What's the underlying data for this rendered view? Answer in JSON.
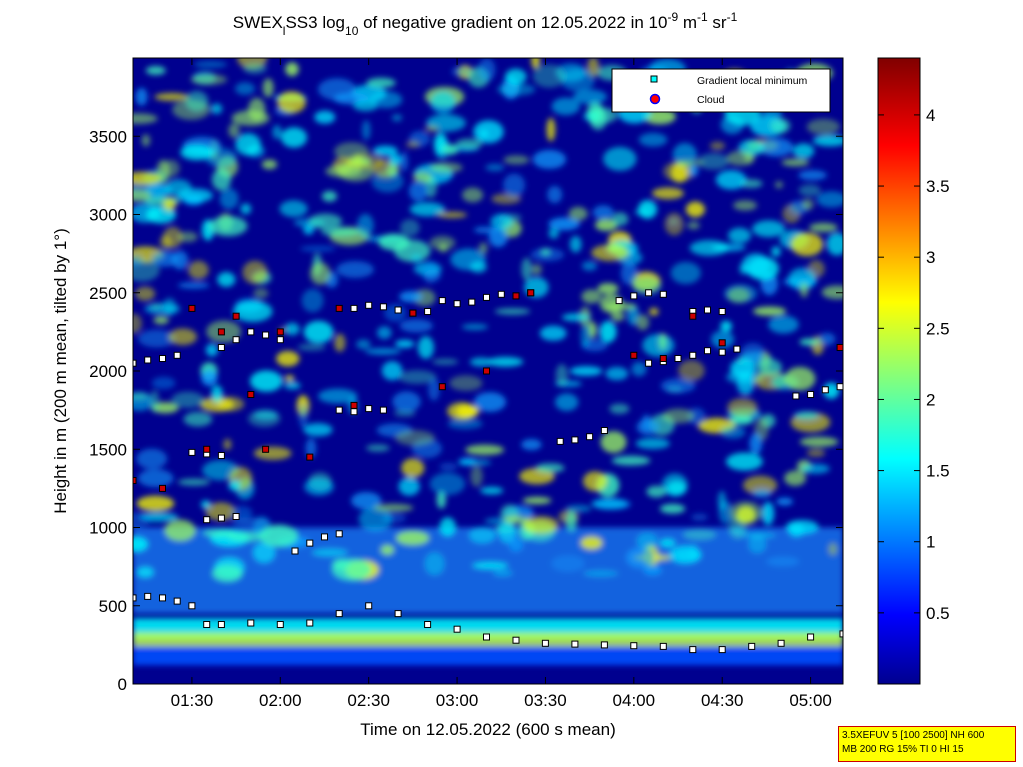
{
  "title": {
    "prefix": "SWEX",
    "subscript_1": "l",
    "middle": "SS3 log",
    "subscript_2": "10",
    "rest": " of negative gradient on 12.05.2022 in 10",
    "exp_1": "-9",
    "unit_1": " m",
    "exp_2": "-1",
    "unit_2": " sr",
    "exp_3": "-1"
  },
  "info_box": {
    "line1": "3.5XEFUV 5 [100 2500] NH 600",
    "line2": "MB 200 RG 15% TI 0 HI 15"
  },
  "colors": {
    "cloud_marker": "#cc0000",
    "gradient_marker": "#ffffff",
    "colormap": [
      "#00008f",
      "#0000ff",
      "#00ffff",
      "#ffff00",
      "#ff0000",
      "#800000"
    ]
  },
  "chart_data": {
    "type": "heatmap",
    "colormap": "jet",
    "xlabel": "Time on 12.05.2022 (600 s mean)",
    "ylabel": "Height in m (200 m mean, tilted by 1°)",
    "x_ticks": [
      "01:30",
      "02:00",
      "02:30",
      "03:00",
      "03:30",
      "04:00",
      "04:30",
      "05:00"
    ],
    "x_tick_minutes": [
      90,
      120,
      150,
      180,
      210,
      240,
      270,
      300
    ],
    "xlim_minutes": [
      70,
      311
    ],
    "y_ticks": [
      0,
      500,
      1000,
      1500,
      2000,
      2500,
      3000,
      3500
    ],
    "ylim": [
      0,
      4000
    ],
    "colorbar": {
      "ticks": [
        "0.5",
        "1",
        "1.5",
        "2",
        "2.5",
        "3",
        "3.5",
        "4"
      ],
      "tick_values": [
        0.5,
        1,
        1.5,
        2,
        2.5,
        3,
        3.5,
        4
      ],
      "range": [
        0,
        4.4
      ]
    },
    "legend": {
      "position": "top-right",
      "entries": [
        "Gradient local minimum",
        "Cloud"
      ]
    },
    "series": [
      {
        "name": "Gradient local minimum",
        "x_minutes": [
          70,
          75,
          80,
          85,
          90,
          95,
          100,
          110,
          120,
          130,
          140,
          150,
          160,
          170,
          180,
          190,
          200,
          210,
          220,
          230,
          240,
          250,
          260,
          270,
          280,
          290,
          300,
          311
        ],
        "y": [
          550,
          560,
          550,
          530,
          500,
          380,
          380,
          390,
          380,
          390,
          450,
          500,
          450,
          380,
          350,
          300,
          280,
          260,
          255,
          250,
          245,
          240,
          220,
          220,
          240,
          260,
          300,
          320
        ]
      },
      {
        "name": "Gradient local minimum",
        "x_minutes": [
          70,
          75,
          80,
          85
        ],
        "y": [
          2050,
          2070,
          2080,
          2100
        ]
      },
      {
        "name": "Gradient local minimum",
        "x_minutes": [
          100,
          105,
          110,
          115,
          120
        ],
        "y": [
          2150,
          2200,
          2250,
          2230,
          2200
        ]
      },
      {
        "name": "Gradient local minimum",
        "x_minutes": [
          145,
          150,
          155,
          160,
          165,
          170
        ],
        "y": [
          2400,
          2420,
          2410,
          2390,
          2370,
          2380
        ]
      },
      {
        "name": "Gradient local minimum",
        "x_minutes": [
          175,
          180,
          185,
          190,
          195,
          200,
          205
        ],
        "y": [
          2450,
          2430,
          2440,
          2470,
          2490,
          2480,
          2500
        ]
      },
      {
        "name": "Gradient local minimum",
        "x_minutes": [
          235,
          240,
          245,
          250
        ],
        "y": [
          2450,
          2480,
          2500,
          2490
        ]
      },
      {
        "name": "Gradient local minimum",
        "x_minutes": [
          260,
          265,
          270
        ],
        "y": [
          2380,
          2390,
          2380
        ]
      },
      {
        "name": "Gradient local minimum",
        "x_minutes": [
          245,
          250,
          255,
          260,
          265,
          270,
          275
        ],
        "y": [
          2050,
          2060,
          2080,
          2100,
          2130,
          2120,
          2140
        ]
      },
      {
        "name": "Gradient local minimum",
        "x_minutes": [
          295,
          300,
          305,
          310
        ],
        "y": [
          1840,
          1850,
          1880,
          1900
        ]
      },
      {
        "name": "Gradient local minimum",
        "x_minutes": [
          140,
          145,
          150,
          155
        ],
        "y": [
          1750,
          1740,
          1760,
          1750
        ]
      },
      {
        "name": "Gradient local minimum",
        "x_minutes": [
          90,
          95,
          100
        ],
        "y": [
          1480,
          1470,
          1460
        ]
      },
      {
        "name": "Gradient local minimum",
        "x_minutes": [
          95,
          100,
          105
        ],
        "y": [
          1050,
          1060,
          1070
        ]
      },
      {
        "name": "Gradient local minimum",
        "x_minutes": [
          125,
          130,
          135,
          140
        ],
        "y": [
          850,
          900,
          940,
          960
        ]
      },
      {
        "name": "Gradient local minimum",
        "x_minutes": [
          215,
          220,
          225,
          230
        ],
        "y": [
          1550,
          1560,
          1580,
          1620
        ]
      }
    ],
    "clouds": {
      "name": "Cloud",
      "x_minutes": [
        70,
        80,
        90,
        95,
        100,
        105,
        110,
        115,
        120,
        130,
        140,
        145,
        165,
        175,
        190,
        200,
        205,
        240,
        250,
        260,
        270,
        310
      ],
      "y": [
        1300,
        1250,
        2400,
        1500,
        2250,
        2350,
        1850,
        1500,
        2250,
        1450,
        2400,
        1780,
        2370,
        1900,
        2000,
        2480,
        2500,
        2100,
        2080,
        2350,
        2180,
        2150
      ]
    }
  }
}
